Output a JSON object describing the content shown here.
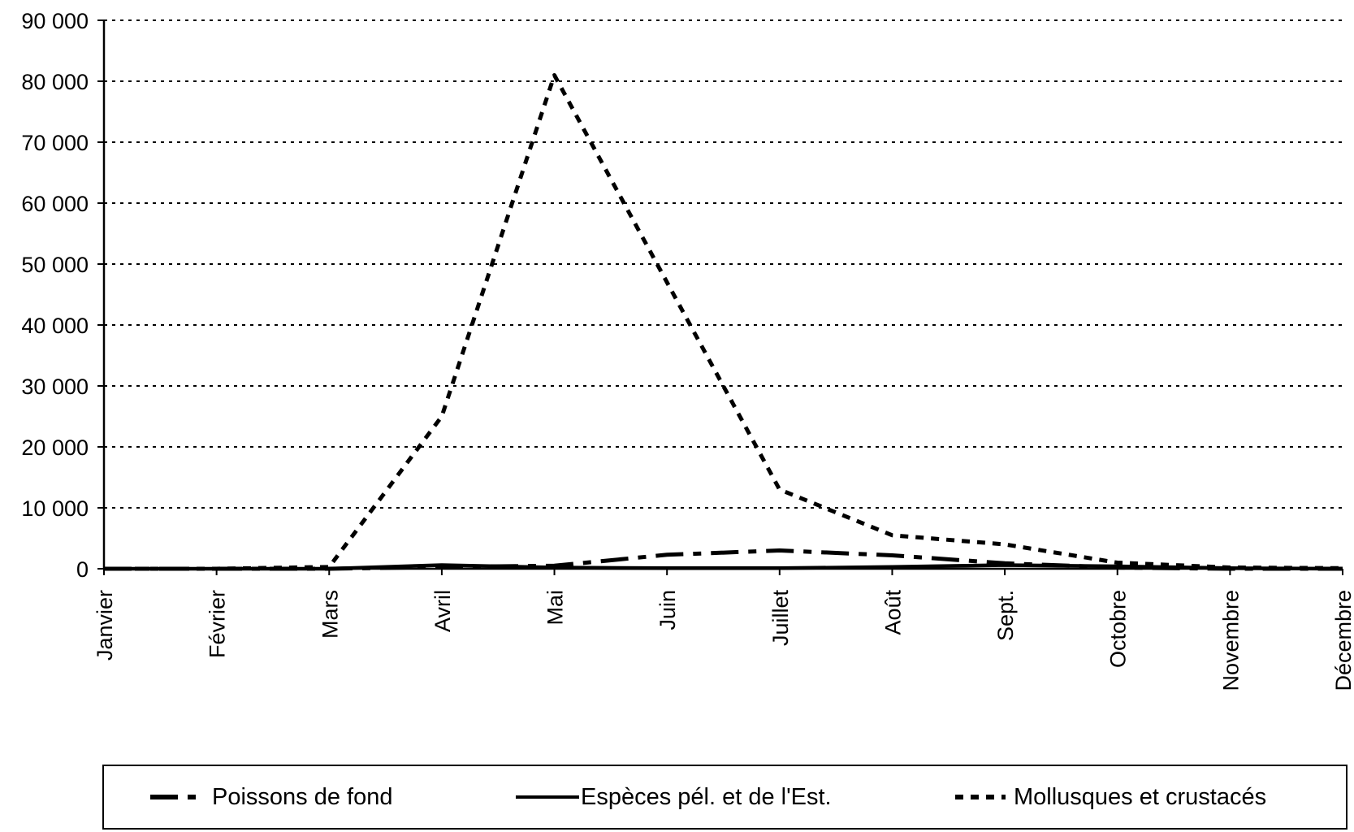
{
  "chart_data": {
    "type": "line",
    "categories": [
      "Janvier",
      "Février",
      "Mars",
      "Avril",
      "Mai",
      "Juin",
      "Juillet",
      "Août",
      "Sept.",
      "Octobre",
      "Novembre",
      "Décembre"
    ],
    "y_ticks": [
      "0",
      "10 000",
      "20 000",
      "30 000",
      "40 000",
      "50 000",
      "60 000",
      "70 000",
      "80 000",
      "90 000"
    ],
    "ylim": [
      0,
      90000
    ],
    "grid": true,
    "legend_position": "bottom",
    "series": [
      {
        "name": "Poissons de fond",
        "style": "dashdot",
        "values": [
          0,
          0,
          0,
          300,
          500,
          2300,
          3000,
          2200,
          900,
          200,
          0,
          0
        ]
      },
      {
        "name": "Espèces pél. et de l'Est.",
        "style": "solid",
        "values": [
          0,
          0,
          0,
          600,
          200,
          100,
          100,
          300,
          600,
          400,
          100,
          0
        ]
      },
      {
        "name": "Mollusques et crustacés",
        "style": "dotted",
        "values": [
          0,
          0,
          300,
          25000,
          81000,
          47000,
          13000,
          5500,
          4000,
          1000,
          200,
          100
        ]
      }
    ]
  }
}
